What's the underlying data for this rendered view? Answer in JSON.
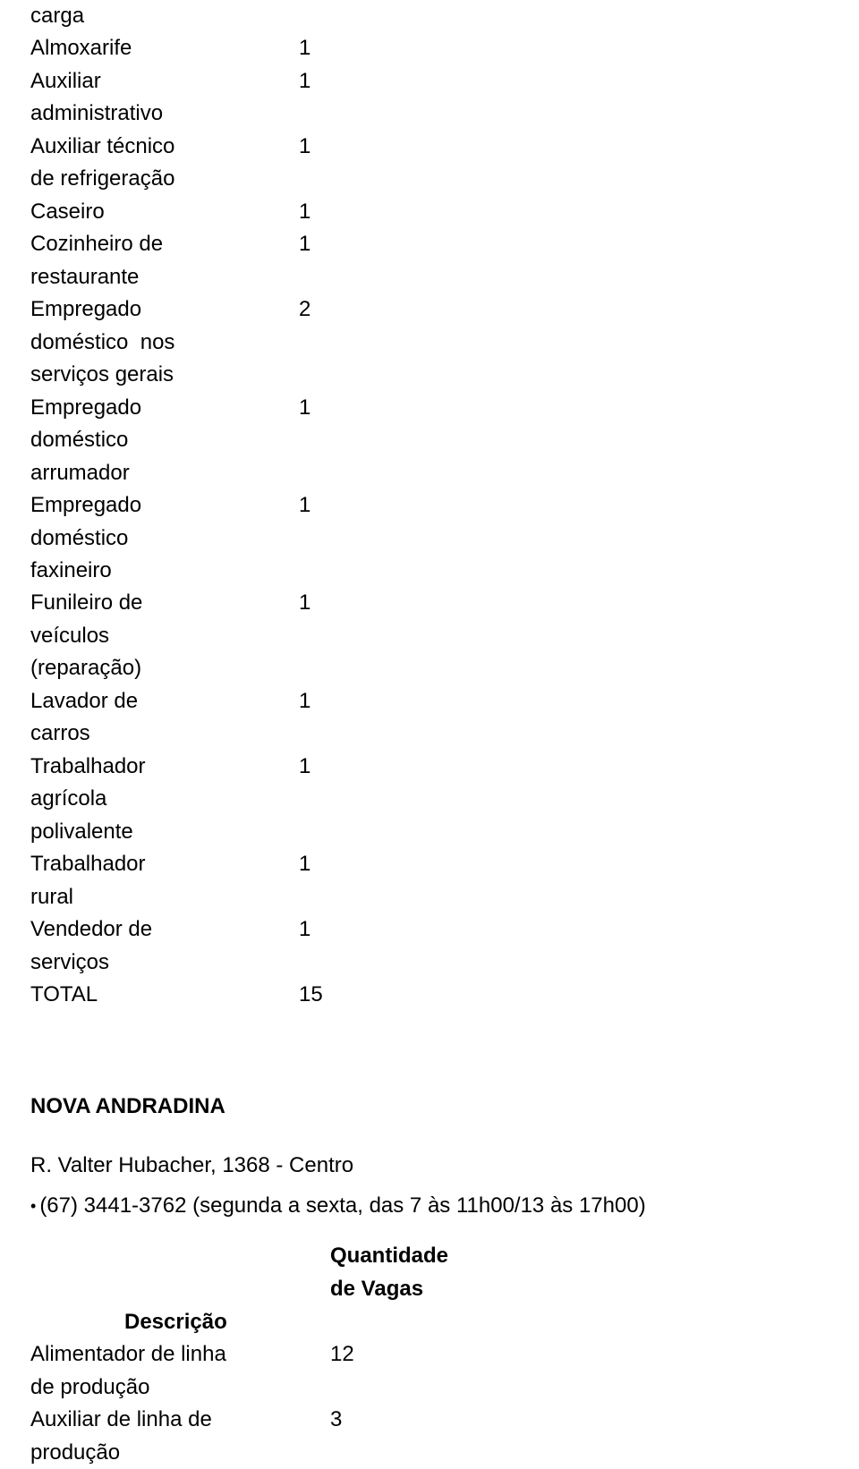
{
  "upper_table": {
    "rows": [
      {
        "title_line1": "carga",
        "title_line2": "",
        "count": ""
      },
      {
        "title_line1": "Almoxarife",
        "title_line2": "",
        "count": "1"
      },
      {
        "title_line1": "Auxiliar",
        "title_line2": "administrativo",
        "count": "1"
      },
      {
        "title_line1": "Auxiliar técnico",
        "title_line2": "de refrigeração",
        "count": "1"
      },
      {
        "title_line1": "Caseiro",
        "title_line2": "",
        "count": "1"
      },
      {
        "title_line1": "Cozinheiro de",
        "title_line2": "restaurante",
        "count": "1"
      },
      {
        "title_line1": "Empregado",
        "title_line2": "doméstico  nos",
        "title_line3": "serviços gerais",
        "count": "2"
      },
      {
        "title_line1": "Empregado",
        "title_line2": "doméstico",
        "title_line3": "arrumador",
        "count": "1"
      },
      {
        "title_line1": "Empregado",
        "title_line2": "doméstico",
        "title_line3": "faxineiro",
        "count": "1"
      },
      {
        "title_line1": "Funileiro de",
        "title_line2": "veículos",
        "title_line3": "(reparação)",
        "count": "1"
      },
      {
        "title_line1": "Lavador de",
        "title_line2": "carros",
        "count": "1"
      },
      {
        "title_line1": "Trabalhador",
        "title_line2": "agrícola",
        "title_line3": "polivalente",
        "count": "1"
      },
      {
        "title_line1": "Trabalhador",
        "title_line2": "rural",
        "count": "1"
      },
      {
        "title_line1": "Vendedor de",
        "title_line2": "serviços",
        "count": "1"
      },
      {
        "title_line1": "TOTAL",
        "title_line2": "",
        "count": "15"
      }
    ]
  },
  "section2": {
    "title": "NOVA ANDRADINA",
    "address": "R. Valter Hubacher, 1368 - Centro",
    "phone_schedule": "(67) 3441-3762 (segunda a sexta, das 7 às 11h00/13 às 17h00)",
    "header_qty": "Quantidade",
    "header_vagas": "de Vagas",
    "header_desc": "Descrição"
  },
  "lower_table": {
    "rows": [
      {
        "title_line1": "Alimentador de linha",
        "title_line2": "de produção",
        "count": "12"
      },
      {
        "title_line1": "Auxiliar de linha de",
        "title_line2": "produção",
        "count": "3"
      }
    ]
  },
  "styles": {
    "font_family": "Verdana, Geneva, sans-serif",
    "font_size_pt": 18,
    "text_color": "#000000",
    "background_color": "#ffffff",
    "bold_weight": 700
  }
}
